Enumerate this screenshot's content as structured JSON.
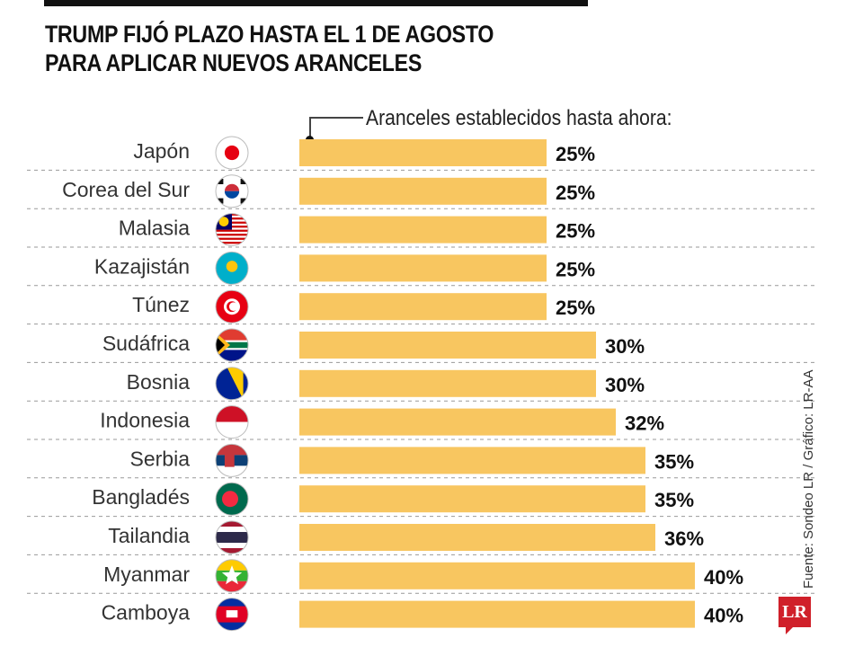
{
  "title_lines": [
    "TRUMP FIJÓ PLAZO HASTA EL 1 DE AGOSTO",
    "PARA APLICAR NUEVOS ARANCELES"
  ],
  "annotation": "Aranceles establecidos hasta ahora:",
  "source": "Fuente: Sondeo LR / Gráfico: LR-AA",
  "logo_text": "LR",
  "colors": {
    "bar": "#f8c660",
    "text": "#111111",
    "logo": "#d0202a"
  },
  "chart_data": {
    "type": "bar",
    "orientation": "horizontal",
    "categories": [
      "Japón",
      "Corea del Sur",
      "Malasia",
      "Kazajistán",
      "Túnez",
      "Sudáfrica",
      "Bosnia",
      "Indonesia",
      "Serbia",
      "Bangladés",
      "Tailandia",
      "Myanmar",
      "Camboya"
    ],
    "values": [
      25,
      25,
      25,
      25,
      25,
      30,
      30,
      32,
      35,
      35,
      36,
      40,
      40
    ],
    "data_labels": [
      "25%",
      "25%",
      "25%",
      "25%",
      "25%",
      "30%",
      "30%",
      "32%",
      "35%",
      "35%",
      "36%",
      "40%",
      "40%"
    ],
    "flag_icons": [
      "japan-flag",
      "south-korea-flag",
      "malaysia-flag",
      "kazakhstan-flag",
      "tunisia-flag",
      "south-africa-flag",
      "bosnia-flag",
      "indonesia-flag",
      "serbia-flag",
      "bangladesh-flag",
      "thailand-flag",
      "myanmar-flag",
      "cambodia-flag"
    ],
    "unit": "%",
    "grid": false
  }
}
